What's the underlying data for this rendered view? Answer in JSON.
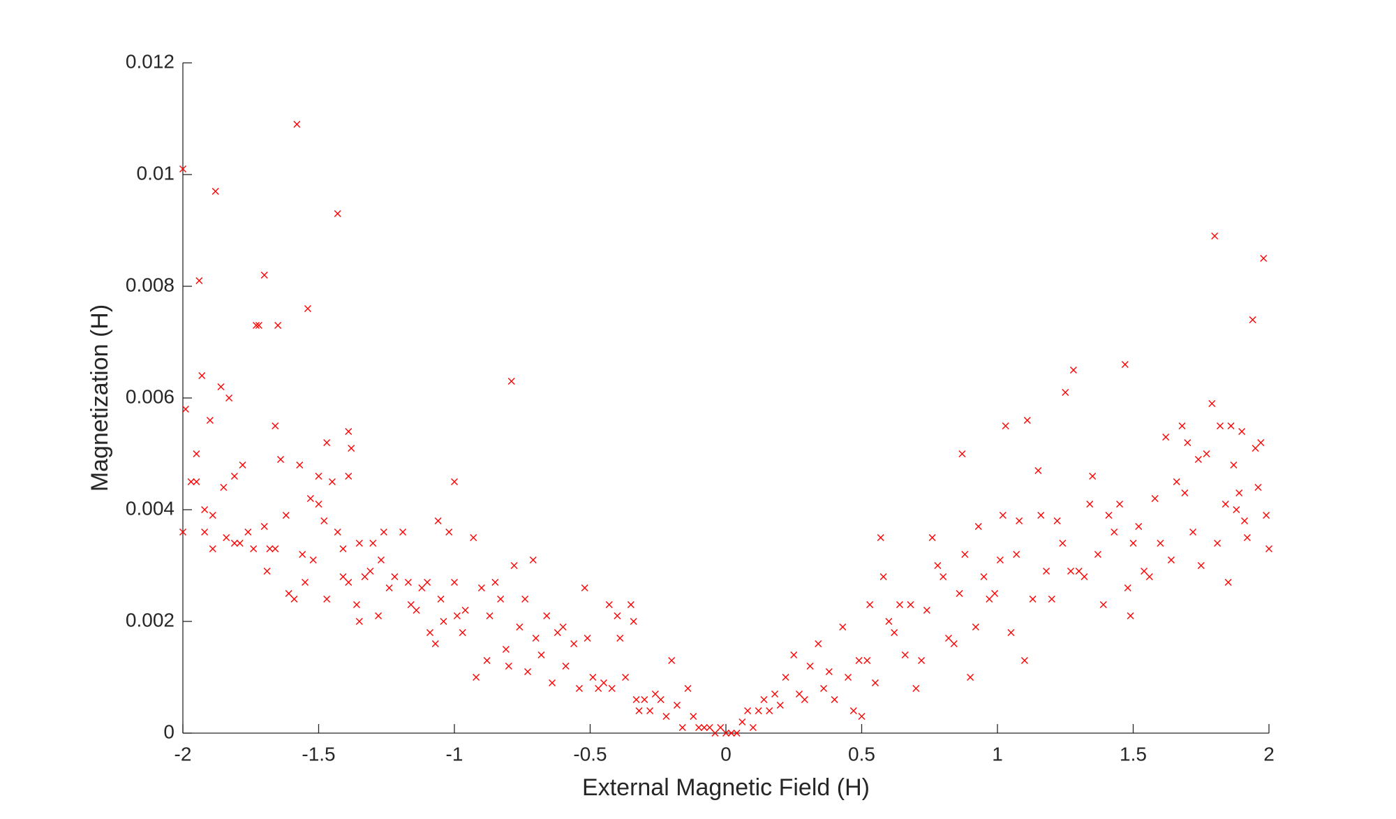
{
  "chart_data": {
    "type": "scatter",
    "marker": "x",
    "color": "#ff0000",
    "xlabel": "External Magnetic Field (H)",
    "ylabel": "Magnetization (H)",
    "xlim": [
      -2,
      2
    ],
    "ylim": [
      0,
      0.012
    ],
    "xticks": [
      -2,
      -1.5,
      -1,
      -0.5,
      0,
      0.5,
      1,
      1.5,
      2
    ],
    "yticks": [
      0,
      0.002,
      0.004,
      0.006,
      0.008,
      0.01,
      0.012
    ],
    "x": [
      -2.0,
      -1.58,
      -1.88,
      -1.43,
      -1.94,
      -1.7,
      -1.54,
      -1.73,
      -1.72,
      -1.65,
      -1.93,
      -1.99,
      -1.86,
      -1.83,
      -1.9,
      -0.79,
      -1.66,
      -1.47,
      -1.39,
      -1.38,
      -1.95,
      -1.97,
      -1.95,
      -1.78,
      -1.64,
      -1.57,
      -1.5,
      -1.45,
      -1.39,
      -1.0,
      -1.81,
      -1.85,
      -1.53,
      -1.5,
      -1.62,
      -1.89,
      -1.92,
      -2.0,
      -1.92,
      -1.89,
      -1.84,
      -1.81,
      -1.79,
      -1.76,
      -1.74,
      -1.7,
      -1.68,
      -1.66,
      -1.69,
      -1.61,
      -1.59,
      -1.56,
      -1.55,
      -1.52,
      -1.48,
      -1.43,
      -1.41,
      -1.41,
      -1.47,
      -1.39,
      -1.35,
      -1.33,
      -1.31,
      -1.36,
      -1.35,
      -1.3,
      -1.27,
      -1.26,
      -1.28,
      -1.24,
      -1.22,
      -1.19,
      -1.17,
      -1.16,
      -1.14,
      -1.12,
      -1.1,
      -1.09,
      -1.07,
      -1.06,
      -1.05,
      -1.04,
      -1.02,
      -1.0,
      -0.99,
      -0.97,
      -0.96,
      -0.93,
      -0.92,
      -0.9,
      -0.88,
      -0.87,
      -0.85,
      -0.83,
      -0.81,
      -0.8,
      -0.78,
      -0.76,
      -0.74,
      -0.73,
      -0.71,
      -0.7,
      -0.68,
      -0.66,
      -0.64,
      -0.62,
      -0.6,
      -0.59,
      -0.56,
      -0.54,
      -0.52,
      -0.51,
      -0.49,
      -0.47,
      -0.45,
      -0.43,
      -0.42,
      -0.4,
      -0.39,
      -0.37,
      -0.35,
      -0.34,
      -0.33,
      -0.32,
      -0.3,
      -0.28,
      -0.26,
      -0.24,
      -0.22,
      -0.2,
      -0.18,
      -0.16,
      -0.14,
      -0.12,
      -0.1,
      -0.08,
      -0.06,
      -0.04,
      -0.02,
      0.0,
      0.02,
      0.04,
      0.06,
      0.08,
      0.1,
      0.12,
      0.14,
      0.16,
      0.18,
      0.2,
      0.22,
      0.25,
      0.27,
      0.29,
      0.31,
      0.34,
      0.36,
      0.38,
      0.4,
      0.43,
      0.45,
      0.47,
      0.49,
      0.5,
      0.52,
      0.53,
      0.55,
      0.57,
      0.58,
      0.6,
      0.62,
      0.64,
      0.66,
      0.68,
      0.7,
      0.72,
      0.74,
      0.76,
      0.78,
      0.8,
      0.82,
      0.84,
      0.86,
      0.87,
      0.88,
      0.9,
      0.92,
      0.93,
      0.95,
      0.97,
      0.99,
      1.01,
      1.02,
      1.03,
      1.05,
      1.07,
      1.08,
      1.1,
      1.11,
      1.13,
      1.15,
      1.16,
      1.18,
      1.2,
      1.22,
      1.24,
      1.25,
      1.27,
      1.28,
      1.3,
      1.32,
      1.34,
      1.35,
      1.37,
      1.39,
      1.41,
      1.43,
      1.45,
      1.47,
      1.48,
      1.49,
      1.5,
      1.52,
      1.54,
      1.56,
      1.58,
      1.6,
      1.62,
      1.64,
      1.66,
      1.68,
      1.69,
      1.7,
      1.72,
      1.74,
      1.75,
      1.77,
      1.79,
      1.8,
      1.81,
      1.82,
      1.84,
      1.85,
      1.86,
      1.87,
      1.88,
      1.89,
      1.9,
      1.91,
      1.92,
      1.94,
      1.95,
      1.96,
      1.97,
      1.98,
      1.99,
      2.0
    ],
    "values": [
      0.0101,
      0.0109,
      0.0097,
      0.0093,
      0.0081,
      0.0082,
      0.0076,
      0.0073,
      0.0073,
      0.0073,
      0.0064,
      0.0058,
      0.0062,
      0.006,
      0.0056,
      0.0063,
      0.0055,
      0.0052,
      0.0054,
      0.0051,
      0.005,
      0.0045,
      0.0045,
      0.0048,
      0.0049,
      0.0048,
      0.0046,
      0.0045,
      0.0046,
      0.0045,
      0.0046,
      0.0044,
      0.0042,
      0.0041,
      0.0039,
      0.0039,
      0.004,
      0.0036,
      0.0036,
      0.0033,
      0.0035,
      0.0034,
      0.0034,
      0.0036,
      0.0033,
      0.0037,
      0.0033,
      0.0033,
      0.0029,
      0.0025,
      0.0024,
      0.0032,
      0.0027,
      0.0031,
      0.0038,
      0.0036,
      0.0033,
      0.0028,
      0.0024,
      0.0027,
      0.0034,
      0.0028,
      0.0029,
      0.0023,
      0.002,
      0.0034,
      0.0031,
      0.0036,
      0.0021,
      0.0026,
      0.0028,
      0.0036,
      0.0027,
      0.0023,
      0.0022,
      0.0026,
      0.0027,
      0.0018,
      0.0016,
      0.0038,
      0.0024,
      0.002,
      0.0036,
      0.0027,
      0.0021,
      0.0018,
      0.0022,
      0.0035,
      0.001,
      0.0026,
      0.0013,
      0.0021,
      0.0027,
      0.0024,
      0.0015,
      0.0012,
      0.003,
      0.0019,
      0.0024,
      0.0011,
      0.0031,
      0.0017,
      0.0014,
      0.0021,
      0.0009,
      0.0018,
      0.0019,
      0.0012,
      0.0016,
      0.0008,
      0.0026,
      0.0017,
      0.001,
      0.0008,
      0.0009,
      0.0023,
      0.0008,
      0.0021,
      0.0017,
      0.001,
      0.0023,
      0.002,
      0.0006,
      0.0004,
      0.0006,
      0.0004,
      0.0007,
      0.0006,
      0.0003,
      0.0013,
      0.0005,
      0.0001,
      0.0008,
      0.0003,
      0.0001,
      0.0001,
      0.0001,
      0.0,
      0.0001,
      0.0,
      0.0,
      0.0,
      0.0002,
      0.0004,
      0.0001,
      0.0004,
      0.0006,
      0.0004,
      0.0007,
      0.0005,
      0.001,
      0.0014,
      0.0007,
      0.0006,
      0.0012,
      0.0016,
      0.0008,
      0.0011,
      0.0006,
      0.0019,
      0.001,
      0.0004,
      0.0013,
      0.0003,
      0.0013,
      0.0023,
      0.0009,
      0.0035,
      0.0028,
      0.002,
      0.0018,
      0.0023,
      0.0014,
      0.0023,
      0.0008,
      0.0013,
      0.0022,
      0.0035,
      0.003,
      0.0028,
      0.0017,
      0.0016,
      0.0025,
      0.005,
      0.0032,
      0.001,
      0.0019,
      0.0037,
      0.0028,
      0.0024,
      0.0025,
      0.0031,
      0.0039,
      0.0055,
      0.0018,
      0.0032,
      0.0038,
      0.0013,
      0.0056,
      0.0024,
      0.0047,
      0.0039,
      0.0029,
      0.0024,
      0.0038,
      0.0034,
      0.0061,
      0.0029,
      0.0065,
      0.0029,
      0.0028,
      0.0041,
      0.0046,
      0.0032,
      0.0023,
      0.0039,
      0.0036,
      0.0041,
      0.0066,
      0.0026,
      0.0021,
      0.0034,
      0.0037,
      0.0029,
      0.0028,
      0.0042,
      0.0034,
      0.0053,
      0.0031,
      0.0045,
      0.0055,
      0.0043,
      0.0052,
      0.0036,
      0.0049,
      0.003,
      0.005,
      0.0059,
      0.0089,
      0.0034,
      0.0055,
      0.0041,
      0.0027,
      0.0055,
      0.0048,
      0.004,
      0.0043,
      0.0054,
      0.0038,
      0.0035,
      0.0074,
      0.0051,
      0.0044,
      0.0052,
      0.0085,
      0.0039,
      0.0033
    ]
  }
}
